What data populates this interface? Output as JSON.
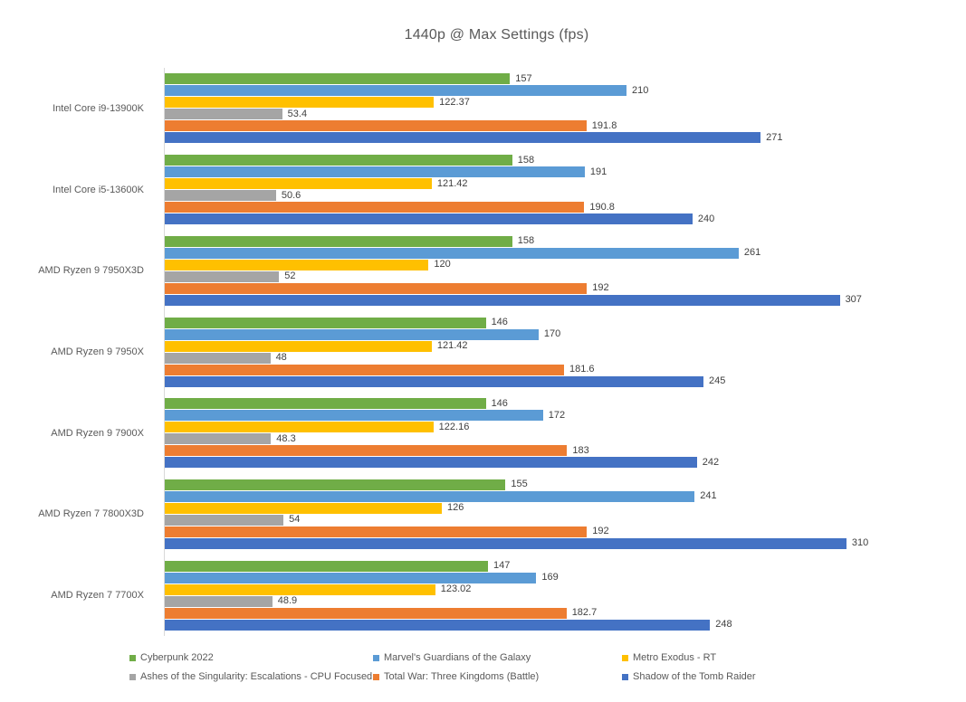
{
  "chart_data": {
    "type": "bar",
    "orientation": "horizontal",
    "title": "1440p @ Max Settings (fps)",
    "xlabel": "",
    "ylabel": "",
    "xlim": [
      0,
      350
    ],
    "grid": false,
    "value_labels": "outside-end",
    "legend_position": "bottom",
    "axis_line_color": "#d9d9d9",
    "text_colors": {
      "title": "#595959",
      "category": "#595959",
      "value": "#404040",
      "legend": "#595959"
    },
    "categories": [
      "Intel Core i9-13900K",
      "Intel Core i5-13600K",
      "AMD Ryzen 9 7950X3D",
      "AMD Ryzen 9 7950X",
      "AMD Ryzen 9 7900X",
      "AMD Ryzen 7 7800X3D",
      "AMD Ryzen 7 7700X"
    ],
    "series": [
      {
        "name": "Cyberpunk 2022",
        "color": "#70AD47",
        "values": [
          157,
          158,
          158,
          146,
          146,
          155,
          147
        ]
      },
      {
        "name": "Marvel's Guardians of the Galaxy",
        "color": "#5B9BD5",
        "values": [
          210,
          191,
          261,
          170,
          172,
          241,
          169
        ]
      },
      {
        "name": "Metro Exodus - RT",
        "color": "#FFC000",
        "values": [
          122.37,
          121.42,
          120,
          121.42,
          122.16,
          126,
          123.02
        ]
      },
      {
        "name": "Ashes of the Singularity: Escalations - CPU Focused",
        "color": "#A5A5A5",
        "values": [
          53.4,
          50.6,
          52,
          48,
          48.3,
          54,
          48.9
        ]
      },
      {
        "name": "Total War: Three Kingdoms (Battle)",
        "color": "#ED7D31",
        "values": [
          191.8,
          190.8,
          192,
          181.6,
          183,
          192,
          182.7
        ]
      },
      {
        "name": "Shadow of the Tomb Raider",
        "color": "#4472C4",
        "values": [
          271,
          240,
          307,
          245,
          242,
          310,
          248
        ]
      }
    ]
  }
}
